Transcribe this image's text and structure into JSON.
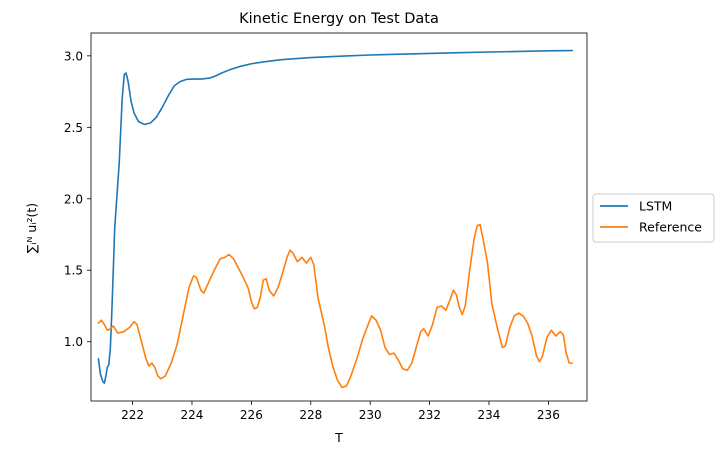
{
  "chart_data": {
    "type": "line",
    "title": "Kinetic Energy on Test Data",
    "xlabel": "T",
    "ylabel": "∑ᵢᴺ uᵢ²(t)",
    "xlim": [
      220.6,
      237.3
    ],
    "ylim": [
      0.585,
      3.16
    ],
    "xticks": [
      222,
      224,
      226,
      228,
      230,
      232,
      234,
      236
    ],
    "yticks": [
      1.0,
      1.5,
      2.0,
      2.5,
      3.0
    ],
    "ytick_labels": [
      "1.0",
      "1.5",
      "2.0",
      "2.5",
      "3.0"
    ],
    "grid": false,
    "legend_position": "outside-right",
    "series": [
      {
        "name": "LSTM",
        "color": "#1f77b4",
        "points": [
          [
            220.85,
            0.88
          ],
          [
            220.92,
            0.77
          ],
          [
            221.0,
            0.72
          ],
          [
            221.05,
            0.71
          ],
          [
            221.1,
            0.76
          ],
          [
            221.15,
            0.82
          ],
          [
            221.2,
            0.84
          ],
          [
            221.25,
            0.95
          ],
          [
            221.3,
            1.2
          ],
          [
            221.4,
            1.8
          ],
          [
            221.55,
            2.25
          ],
          [
            221.65,
            2.7
          ],
          [
            221.72,
            2.87
          ],
          [
            221.78,
            2.88
          ],
          [
            221.85,
            2.82
          ],
          [
            221.95,
            2.68
          ],
          [
            222.05,
            2.6
          ],
          [
            222.2,
            2.54
          ],
          [
            222.4,
            2.52
          ],
          [
            222.6,
            2.53
          ],
          [
            222.8,
            2.57
          ],
          [
            223.0,
            2.64
          ],
          [
            223.2,
            2.72
          ],
          [
            223.4,
            2.79
          ],
          [
            223.6,
            2.82
          ],
          [
            223.8,
            2.835
          ],
          [
            224.0,
            2.838
          ],
          [
            224.3,
            2.838
          ],
          [
            224.6,
            2.845
          ],
          [
            224.8,
            2.86
          ],
          [
            225.0,
            2.88
          ],
          [
            225.3,
            2.905
          ],
          [
            225.6,
            2.925
          ],
          [
            226.0,
            2.945
          ],
          [
            226.5,
            2.96
          ],
          [
            227.0,
            2.973
          ],
          [
            228.0,
            2.988
          ],
          [
            229.0,
            2.998
          ],
          [
            230.0,
            3.006
          ],
          [
            231.0,
            3.012
          ],
          [
            232.0,
            3.017
          ],
          [
            233.0,
            3.022
          ],
          [
            234.0,
            3.027
          ],
          [
            235.0,
            3.031
          ],
          [
            236.0,
            3.035
          ],
          [
            236.8,
            3.037
          ]
        ]
      },
      {
        "name": "Reference",
        "color": "#ff7f0e",
        "points": [
          [
            220.85,
            1.13
          ],
          [
            220.95,
            1.15
          ],
          [
            221.05,
            1.12
          ],
          [
            221.15,
            1.08
          ],
          [
            221.25,
            1.09
          ],
          [
            221.35,
            1.11
          ],
          [
            221.5,
            1.06
          ],
          [
            221.7,
            1.07
          ],
          [
            221.9,
            1.1
          ],
          [
            222.05,
            1.14
          ],
          [
            222.15,
            1.12
          ],
          [
            222.3,
            1.0
          ],
          [
            222.45,
            0.88
          ],
          [
            222.55,
            0.83
          ],
          [
            222.65,
            0.85
          ],
          [
            222.75,
            0.82
          ],
          [
            222.85,
            0.76
          ],
          [
            222.95,
            0.74
          ],
          [
            223.1,
            0.76
          ],
          [
            223.3,
            0.85
          ],
          [
            223.5,
            0.98
          ],
          [
            223.7,
            1.18
          ],
          [
            223.9,
            1.38
          ],
          [
            224.05,
            1.46
          ],
          [
            224.15,
            1.45
          ],
          [
            224.3,
            1.36
          ],
          [
            224.4,
            1.34
          ],
          [
            224.55,
            1.41
          ],
          [
            224.75,
            1.5
          ],
          [
            224.95,
            1.58
          ],
          [
            225.1,
            1.59
          ],
          [
            225.25,
            1.61
          ],
          [
            225.4,
            1.58
          ],
          [
            225.55,
            1.52
          ],
          [
            225.75,
            1.44
          ],
          [
            225.9,
            1.37
          ],
          [
            226.0,
            1.28
          ],
          [
            226.1,
            1.23
          ],
          [
            226.2,
            1.24
          ],
          [
            226.3,
            1.31
          ],
          [
            226.4,
            1.43
          ],
          [
            226.5,
            1.44
          ],
          [
            226.6,
            1.36
          ],
          [
            226.75,
            1.32
          ],
          [
            226.9,
            1.38
          ],
          [
            227.05,
            1.48
          ],
          [
            227.2,
            1.59
          ],
          [
            227.3,
            1.64
          ],
          [
            227.4,
            1.62
          ],
          [
            227.55,
            1.56
          ],
          [
            227.7,
            1.59
          ],
          [
            227.85,
            1.55
          ],
          [
            228.0,
            1.59
          ],
          [
            228.1,
            1.54
          ],
          [
            228.25,
            1.3
          ],
          [
            228.45,
            1.12
          ],
          [
            228.6,
            0.95
          ],
          [
            228.75,
            0.82
          ],
          [
            228.9,
            0.73
          ],
          [
            229.05,
            0.68
          ],
          [
            229.2,
            0.69
          ],
          [
            229.35,
            0.76
          ],
          [
            229.55,
            0.88
          ],
          [
            229.75,
            1.02
          ],
          [
            229.95,
            1.13
          ],
          [
            230.05,
            1.18
          ],
          [
            230.2,
            1.15
          ],
          [
            230.35,
            1.08
          ],
          [
            230.5,
            0.96
          ],
          [
            230.65,
            0.91
          ],
          [
            230.8,
            0.92
          ],
          [
            230.95,
            0.87
          ],
          [
            231.1,
            0.81
          ],
          [
            231.25,
            0.8
          ],
          [
            231.4,
            0.85
          ],
          [
            231.55,
            0.96
          ],
          [
            231.7,
            1.07
          ],
          [
            231.8,
            1.09
          ],
          [
            231.95,
            1.04
          ],
          [
            232.1,
            1.12
          ],
          [
            232.25,
            1.24
          ],
          [
            232.4,
            1.25
          ],
          [
            232.55,
            1.22
          ],
          [
            232.7,
            1.3
          ],
          [
            232.8,
            1.36
          ],
          [
            232.9,
            1.33
          ],
          [
            233.0,
            1.24
          ],
          [
            233.1,
            1.19
          ],
          [
            233.2,
            1.25
          ],
          [
            233.35,
            1.5
          ],
          [
            233.5,
            1.72
          ],
          [
            233.6,
            1.81
          ],
          [
            233.7,
            1.82
          ],
          [
            233.8,
            1.72
          ],
          [
            233.95,
            1.55
          ],
          [
            234.1,
            1.26
          ],
          [
            234.3,
            1.08
          ],
          [
            234.45,
            0.96
          ],
          [
            234.55,
            0.97
          ],
          [
            234.7,
            1.1
          ],
          [
            234.85,
            1.18
          ],
          [
            235.0,
            1.2
          ],
          [
            235.15,
            1.18
          ],
          [
            235.3,
            1.13
          ],
          [
            235.45,
            1.04
          ],
          [
            235.6,
            0.9
          ],
          [
            235.7,
            0.86
          ],
          [
            235.8,
            0.9
          ],
          [
            235.95,
            1.03
          ],
          [
            236.1,
            1.08
          ],
          [
            236.25,
            1.04
          ],
          [
            236.4,
            1.07
          ],
          [
            236.5,
            1.05
          ],
          [
            236.6,
            0.92
          ],
          [
            236.7,
            0.85
          ],
          [
            236.8,
            0.85
          ]
        ]
      }
    ]
  }
}
